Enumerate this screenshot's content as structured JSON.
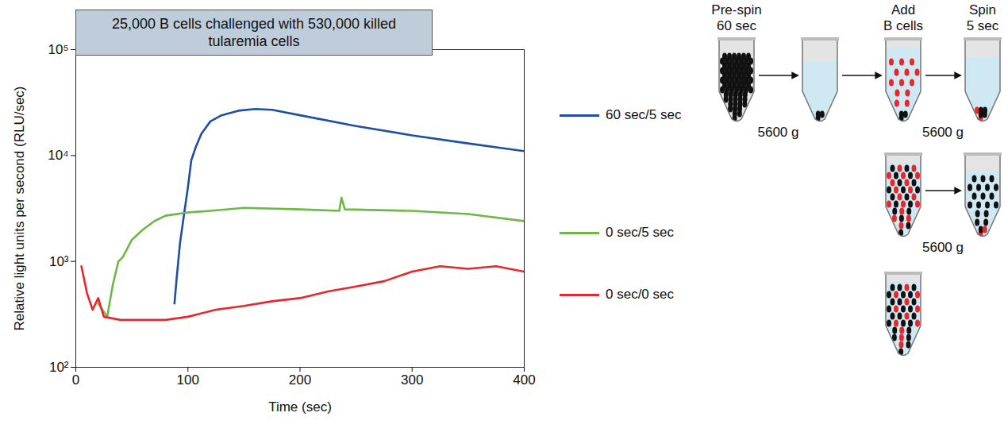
{
  "chart_data": {
    "type": "line",
    "title": "25,000 B cells challenged with 530,000 killed tularemia cells",
    "x_label": "Time (sec)",
    "y_label": "Relative light units per second (RLU/sec)",
    "log": "y",
    "legend": "right",
    "xlim": [
      0,
      400
    ],
    "xticks": [
      0,
      100,
      200,
      300,
      400
    ],
    "ylim": [
      100,
      100000
    ],
    "yticks": [
      {
        "value": 100,
        "label": "10²"
      },
      {
        "value": 1000,
        "label": "10³"
      },
      {
        "value": 10000,
        "label": "10⁴"
      },
      {
        "value": 100000,
        "label": "10⁵"
      }
    ],
    "series": [
      {
        "name": "60 sec/5 sec",
        "color": "#1f4fa5",
        "x": [
          88,
          90,
          93,
          97,
          100,
          103,
          107,
          112,
          120,
          130,
          145,
          160,
          175,
          200,
          250,
          300,
          350,
          400
        ],
        "values": [
          400,
          700,
          1500,
          3000,
          5000,
          9000,
          12000,
          16000,
          21000,
          24000,
          26500,
          27500,
          27000,
          24000,
          19000,
          15500,
          13000,
          11000
        ]
      },
      {
        "name": "0 sec/5 sec",
        "color": "#6cb845",
        "x": [
          20,
          28,
          33,
          38,
          42,
          50,
          60,
          70,
          80,
          100,
          120,
          150,
          200,
          235,
          237,
          240,
          300,
          350,
          400
        ],
        "values": [
          400,
          300,
          600,
          1000,
          1100,
          1600,
          2000,
          2400,
          2700,
          2900,
          3000,
          3200,
          3100,
          3000,
          4000,
          3100,
          3000,
          2800,
          2400
        ]
      },
      {
        "name": "0 sec/0 sec",
        "color": "#e8262b",
        "x": [
          5,
          10,
          15,
          20,
          25,
          40,
          60,
          80,
          100,
          125,
          150,
          175,
          200,
          225,
          250,
          275,
          300,
          325,
          350,
          375,
          400
        ],
        "values": [
          900,
          500,
          350,
          450,
          300,
          280,
          280,
          280,
          300,
          350,
          380,
          420,
          450,
          520,
          580,
          650,
          800,
          900,
          850,
          900,
          800
        ]
      }
    ]
  },
  "diagram": {
    "step_labels": [
      [
        "Pre-spin",
        "60 sec"
      ],
      [
        "Add",
        "B cells"
      ],
      [
        "Spin",
        "5 sec"
      ]
    ],
    "force_labels": [
      "5600 g",
      "5600 g",
      "5600 g"
    ]
  }
}
